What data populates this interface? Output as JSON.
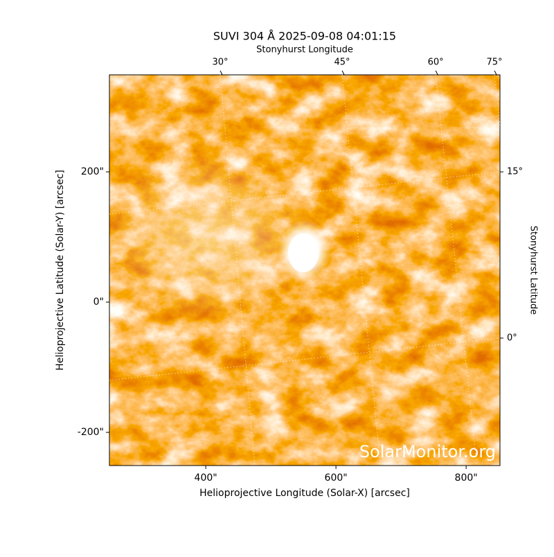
{
  "chart_data": {
    "type": "image",
    "title": "SUVI 304 Å 2025-09-08 04:01:15",
    "x_label": "Helioprojective Longitude (Solar-X) [arcsec]",
    "y_label": "Helioprojective Latitude (Solar-Y) [arcsec]",
    "x2_label": "Stonyhurst Longitude",
    "y2_label": "Stonyhurst Latitude",
    "xlim": [
      252,
      852
    ],
    "ylim": [
      -251,
      349
    ],
    "xticks": [
      {
        "value": 400,
        "label": "400\""
      },
      {
        "value": 600,
        "label": "600\""
      },
      {
        "value": 800,
        "label": "800\""
      }
    ],
    "yticks": [
      {
        "value": -200,
        "label": "-200\""
      },
      {
        "value": 0,
        "label": "0\""
      },
      {
        "value": 200,
        "label": "200\""
      }
    ],
    "x2ticks": [
      {
        "value": 30,
        "label": "30°"
      },
      {
        "value": 45,
        "label": "45°"
      },
      {
        "value": 60,
        "label": "60°"
      },
      {
        "value": 75,
        "label": "75°"
      }
    ],
    "y2ticks": [
      {
        "value": 0,
        "label": "0°"
      },
      {
        "value": 15,
        "label": "15°"
      }
    ],
    "watermark": "SolarMonitor.org",
    "grid": true
  }
}
